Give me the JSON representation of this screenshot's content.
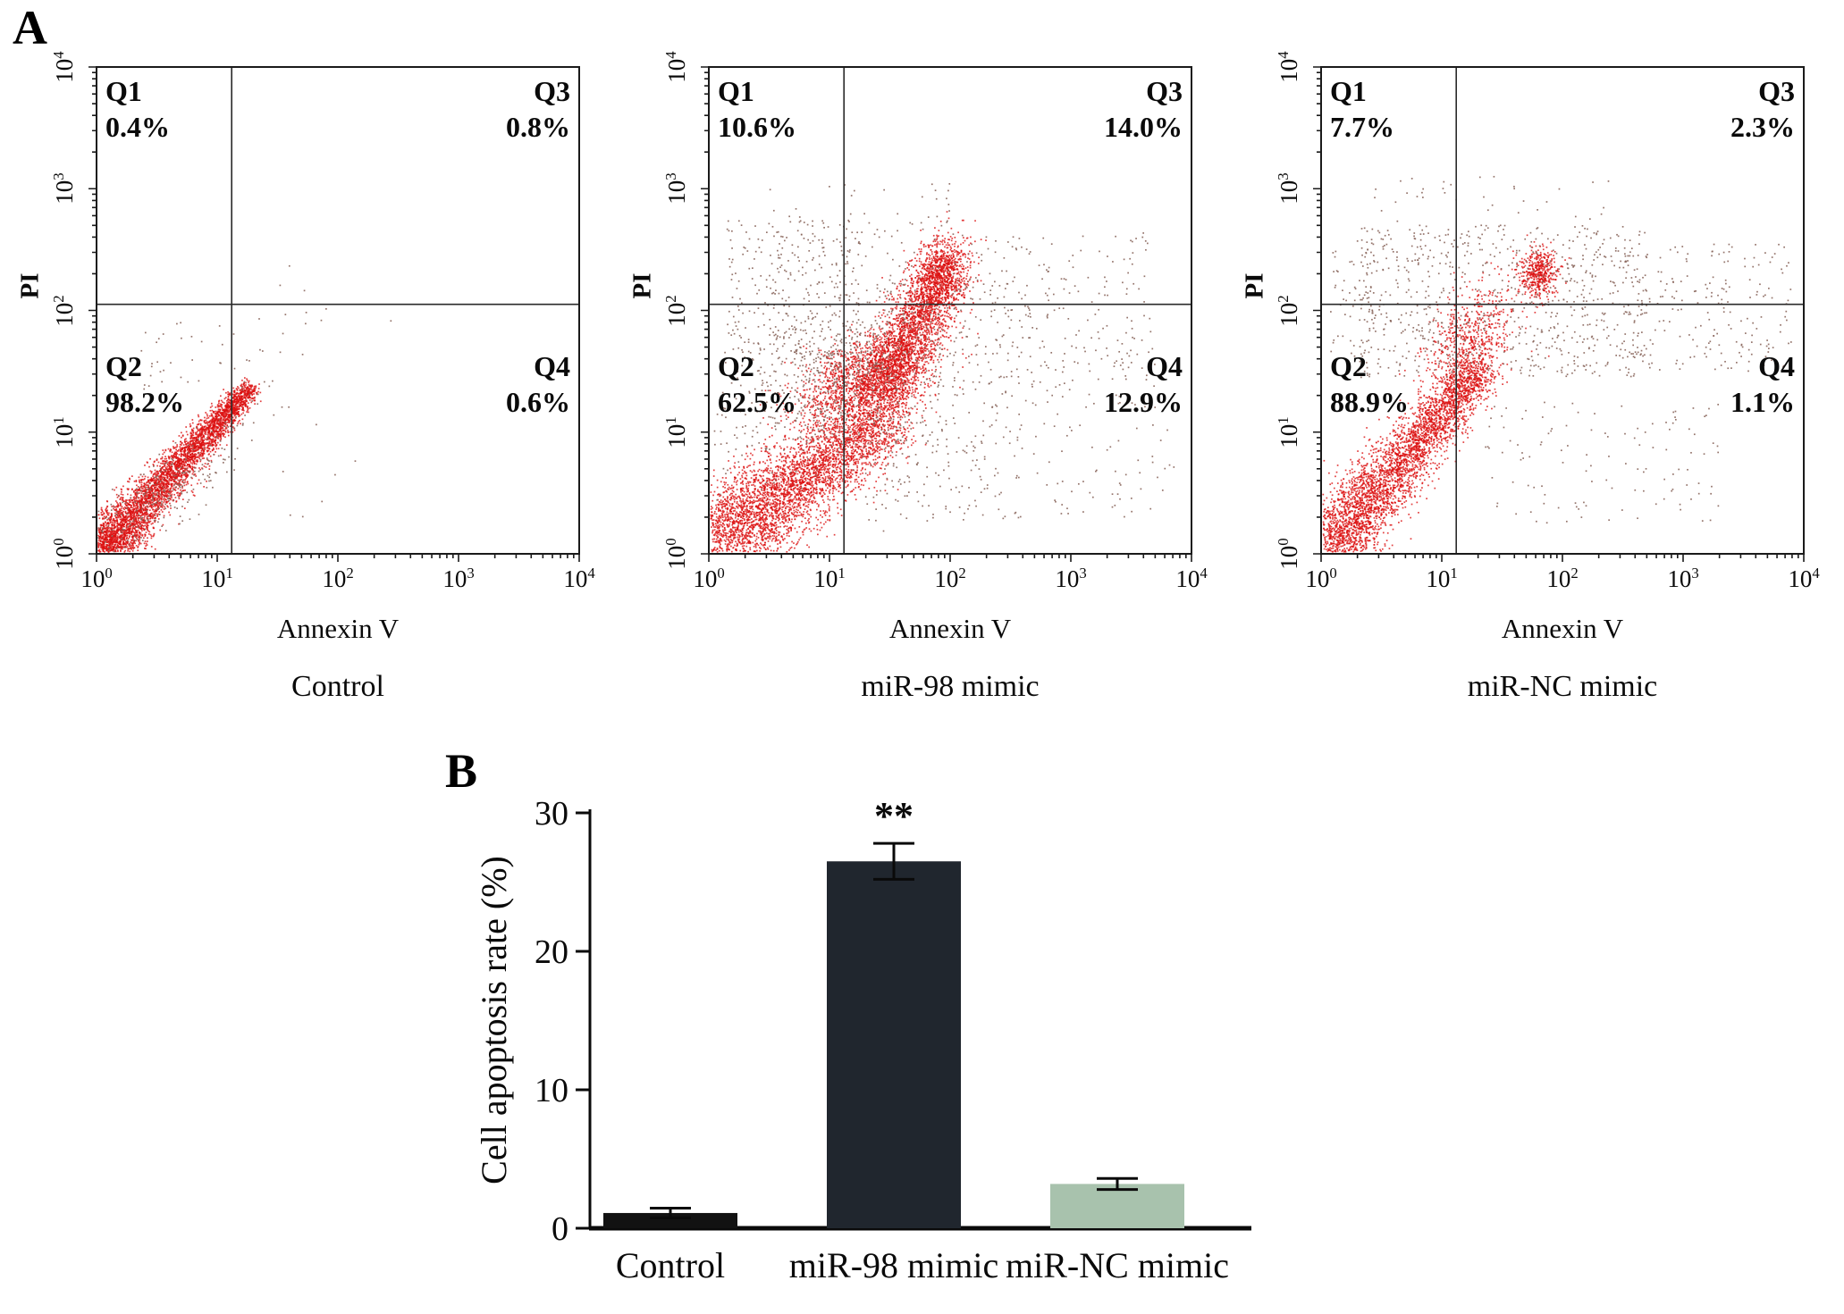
{
  "panelA": {
    "label": "A",
    "axis": {
      "x_title": "Annexin V",
      "y_title": "PI",
      "tick_base": "10",
      "tick_exponents": [
        0,
        1,
        2,
        3,
        4
      ]
    },
    "point_colors": {
      "dense": "#dc1010",
      "sparse": "#8a665c"
    },
    "plots": [
      {
        "title": "Control",
        "quadrants": {
          "q1": {
            "label": "Q1",
            "value": "0.4%"
          },
          "q2": {
            "label": "Q2",
            "value": "98.2%"
          },
          "q3": {
            "label": "Q3",
            "value": "0.8%"
          },
          "q4": {
            "label": "Q4",
            "value": "0.6%"
          }
        }
      },
      {
        "title": "miR-98 mimic",
        "quadrants": {
          "q1": {
            "label": "Q1",
            "value": "10.6%"
          },
          "q2": {
            "label": "Q2",
            "value": "62.5%"
          },
          "q3": {
            "label": "Q3",
            "value": "14.0%"
          },
          "q4": {
            "label": "Q4",
            "value": "12.9%"
          }
        }
      },
      {
        "title": "miR-NC mimic",
        "quadrants": {
          "q1": {
            "label": "Q1",
            "value": "7.7%"
          },
          "q2": {
            "label": "Q2",
            "value": "88.9%"
          },
          "q3": {
            "label": "Q3",
            "value": "2.3%"
          },
          "q4": {
            "label": "Q4",
            "value": "1.1%"
          }
        }
      }
    ]
  },
  "panelB": {
    "label": "B"
  },
  "chart_data": [
    {
      "type": "scatter",
      "subtype": "flow_cytometry",
      "title": "Control",
      "xlabel": "Annexin V",
      "ylabel": "PI",
      "xscale": "log",
      "yscale": "log",
      "xlim": [
        1,
        10000
      ],
      "ylim": [
        1,
        10000
      ],
      "gates": {
        "x_log10": 1.12,
        "y_log10": 2.05
      },
      "quadrant_percentages": {
        "Q1": 0.4,
        "Q2": 98.2,
        "Q3": 0.8,
        "Q4": 0.6
      },
      "render_clusters": [
        {
          "kind": "comet",
          "n": 4600,
          "x0": 0.02,
          "y0": 0.0,
          "x1": 1.27,
          "y1": 1.36,
          "width": 0.11,
          "bias": 1.35,
          "taper": 0.6,
          "color": "dense",
          "seed": 11
        },
        {
          "kind": "gauss",
          "n": 280,
          "cx": 0.55,
          "cy": 0.5,
          "sx": 0.32,
          "sy": 0.27,
          "rho": 0.85,
          "color": "sparse",
          "seed": 12
        },
        {
          "kind": "uniform",
          "n": 34,
          "x0": 0.35,
          "x1": 1.55,
          "y0": 1.35,
          "y1": 1.95,
          "color": "sparse",
          "seed": 13
        },
        {
          "kind": "uniform",
          "n": 14,
          "x0": 1.1,
          "x1": 1.75,
          "y0": 1.2,
          "y1": 1.7,
          "color": "sparse",
          "seed": 14
        },
        {
          "kind": "uniform",
          "n": 9,
          "x0": 1.5,
          "x1": 2.5,
          "y0": 1.7,
          "y1": 2.4,
          "color": "sparse",
          "seed": 15
        },
        {
          "kind": "uniform",
          "n": 8,
          "x0": 1.3,
          "x1": 2.2,
          "y0": 0.3,
          "y1": 1.2,
          "color": "sparse",
          "seed": 16
        }
      ]
    },
    {
      "type": "scatter",
      "subtype": "flow_cytometry",
      "title": "miR-98 mimic",
      "xlabel": "Annexin V",
      "ylabel": "PI",
      "xscale": "log",
      "yscale": "log",
      "xlim": [
        1,
        10000
      ],
      "ylim": [
        1,
        10000
      ],
      "gates": {
        "x_log10": 1.12,
        "y_log10": 2.05
      },
      "quadrant_percentages": {
        "Q1": 10.6,
        "Q2": 62.5,
        "Q3": 14.0,
        "Q4": 12.9
      },
      "render_clusters": [
        {
          "kind": "comet",
          "n": 4200,
          "x0": 0.03,
          "y0": 0.08,
          "x1": 1.5,
          "y1": 1.12,
          "width": 0.2,
          "bias": 1.25,
          "taper": 0.3,
          "color": "dense",
          "seed": 21
        },
        {
          "kind": "gauss",
          "n": 1600,
          "cx": 1.3,
          "cy": 1.45,
          "sx": 0.28,
          "sy": 0.2,
          "rho": 0.55,
          "color": "dense",
          "seed": 22
        },
        {
          "kind": "comet",
          "n": 2400,
          "x0": 1.45,
          "y0": 1.3,
          "x1": 1.98,
          "y1": 2.42,
          "width": 0.13,
          "bias": 0.95,
          "taper": 0.2,
          "color": "dense",
          "seed": 23
        },
        {
          "kind": "gauss",
          "n": 450,
          "cx": 1.92,
          "cy": 2.3,
          "sx": 0.13,
          "sy": 0.16,
          "rho": 0.2,
          "color": "dense",
          "seed": 24
        },
        {
          "kind": "gauss",
          "n": 900,
          "cx": 1.15,
          "cy": 1.5,
          "sx": 0.55,
          "sy": 0.42,
          "rho": 0.35,
          "color": "sparse",
          "seed": 25
        },
        {
          "kind": "uniform",
          "n": 260,
          "x0": 0.15,
          "x1": 1.25,
          "y0": 1.6,
          "y1": 2.75,
          "color": "sparse",
          "seed": 26
        },
        {
          "kind": "uniform",
          "n": 300,
          "x0": 2.0,
          "x1": 3.7,
          "y0": 1.2,
          "y1": 2.65,
          "color": "sparse",
          "seed": 27
        },
        {
          "kind": "uniform",
          "n": 170,
          "x0": 1.3,
          "x1": 2.6,
          "y0": 0.25,
          "y1": 1.15,
          "color": "sparse",
          "seed": 28
        },
        {
          "kind": "uniform",
          "n": 60,
          "x0": 2.6,
          "x1": 3.9,
          "y0": 0.3,
          "y1": 1.15,
          "color": "sparse",
          "seed": 29
        },
        {
          "kind": "uniform",
          "n": 45,
          "x0": 0.5,
          "x1": 2.1,
          "y0": 2.55,
          "y1": 3.05,
          "color": "sparse",
          "seed": 30
        }
      ]
    },
    {
      "type": "scatter",
      "subtype": "flow_cytometry",
      "title": "miR-NC mimic",
      "xlabel": "Annexin V",
      "ylabel": "PI",
      "xscale": "log",
      "yscale": "log",
      "xlim": [
        1,
        10000
      ],
      "ylim": [
        1,
        10000
      ],
      "gates": {
        "x_log10": 1.12,
        "y_log10": 2.05
      },
      "quadrant_percentages": {
        "Q1": 7.7,
        "Q2": 88.9,
        "Q3": 2.3,
        "Q4": 1.1
      },
      "render_clusters": [
        {
          "kind": "comet",
          "n": 3900,
          "x0": 0.05,
          "y0": 0.03,
          "x1": 1.32,
          "y1": 1.52,
          "width": 0.16,
          "bias": 1.25,
          "taper": 0.45,
          "color": "dense",
          "seed": 31
        },
        {
          "kind": "gauss",
          "n": 650,
          "cx": 1.22,
          "cy": 1.72,
          "sx": 0.18,
          "sy": 0.24,
          "rho": 0.45,
          "color": "dense",
          "seed": 32
        },
        {
          "kind": "gauss",
          "n": 470,
          "cx": 1.8,
          "cy": 2.3,
          "sx": 0.08,
          "sy": 0.1,
          "rho": 0,
          "color": "dense",
          "seed": 33
        },
        {
          "kind": "uniform",
          "n": 780,
          "x0": 0.3,
          "x1": 2.7,
          "y0": 1.45,
          "y1": 2.7,
          "color": "sparse",
          "seed": 34
        },
        {
          "kind": "uniform",
          "n": 210,
          "x0": 2.5,
          "x1": 3.9,
          "y0": 1.5,
          "y1": 2.55,
          "color": "sparse",
          "seed": 35
        },
        {
          "kind": "uniform",
          "n": 120,
          "x0": 1.35,
          "x1": 3.3,
          "y0": 0.25,
          "y1": 1.25,
          "color": "sparse",
          "seed": 36
        },
        {
          "kind": "uniform",
          "n": 35,
          "x0": 0.4,
          "x1": 2.4,
          "y0": 2.7,
          "y1": 3.1,
          "color": "sparse",
          "seed": 37
        },
        {
          "kind": "uniform",
          "n": 60,
          "x0": 0.08,
          "x1": 0.45,
          "y0": 1.6,
          "y1": 2.5,
          "color": "sparse",
          "seed": 38
        }
      ]
    },
    {
      "type": "bar",
      "categories": [
        "Control",
        "miR-98 mimic",
        "miR-NC mimic"
      ],
      "values": [
        1.1,
        26.5,
        3.2
      ],
      "errors": [
        0.35,
        1.3,
        0.4
      ],
      "bar_colors": [
        "#121212",
        "#20262e",
        "#a8c2ad"
      ],
      "ylabel": "Cell apoptosis rate (%)",
      "ylim": [
        0,
        30
      ],
      "yticks": [
        0,
        10,
        20,
        30
      ],
      "significance": [
        {
          "category": "miR-98 mimic",
          "label": "**"
        }
      ],
      "grid": false,
      "legend": "none"
    }
  ]
}
